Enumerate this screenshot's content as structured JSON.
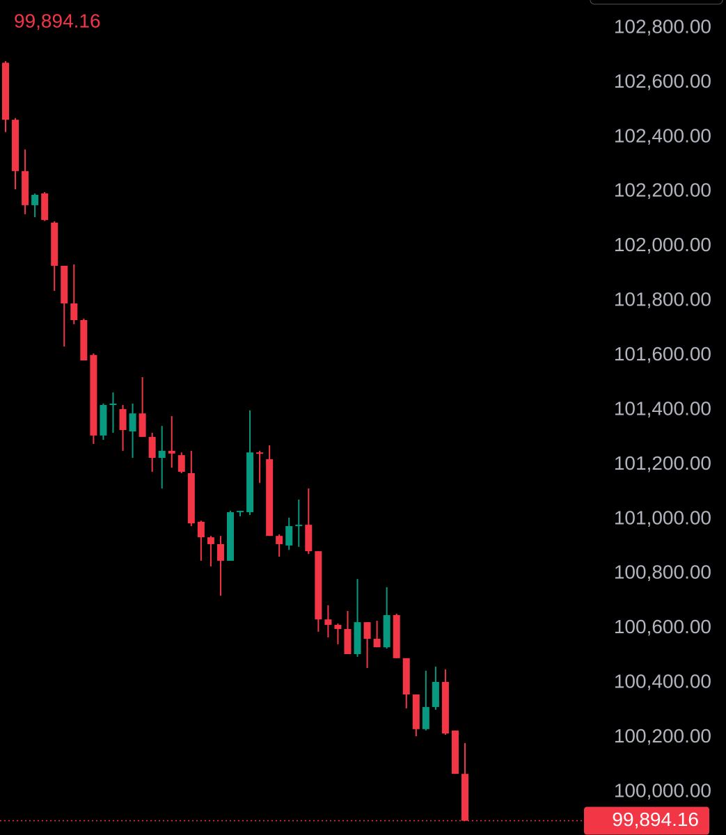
{
  "chart_data": {
    "type": "candlestick",
    "last_price": 99894.16,
    "last_price_label": "99,894.16",
    "ylim": [
      99842,
      102902
    ],
    "yticks": [
      {
        "value": 100000,
        "label": "100,000.00"
      },
      {
        "value": 100200,
        "label": "100,200.00"
      },
      {
        "value": 100400,
        "label": "100,400.00"
      },
      {
        "value": 100600,
        "label": "100,600.00"
      },
      {
        "value": 100800,
        "label": "100,800.00"
      },
      {
        "value": 101000,
        "label": "101,000.00"
      },
      {
        "value": 101200,
        "label": "101,200.00"
      },
      {
        "value": 101400,
        "label": "101,400.00"
      },
      {
        "value": 101600,
        "label": "101,600.00"
      },
      {
        "value": 101800,
        "label": "101,800.00"
      },
      {
        "value": 102000,
        "label": "102,000.00"
      },
      {
        "value": 102200,
        "label": "102,200.00"
      },
      {
        "value": 102400,
        "label": "102,400.00"
      },
      {
        "value": 102600,
        "label": "102,600.00"
      },
      {
        "value": 102800,
        "label": "102,800.00"
      }
    ],
    "up_color": "#089981",
    "down_color": "#f23645",
    "open": [
      102672,
      102463,
      102275,
      102150,
      102193,
      102086,
      101928,
      101790,
      101729,
      101601,
      101306,
      101418,
      101403,
      101321,
      101387,
      101301,
      101224,
      101250,
      101234,
      101168,
      100990,
      100933,
      100908,
      100847,
      101025,
      101025,
      101244,
      101219,
      100938,
      100903,
      100974,
      100979,
      100882,
      100632,
      100612,
      100597,
      100505,
      100622,
      100561,
      100530,
      100648,
      100490,
      100357,
      100230,
      100311,
      100403,
      100225,
      100066
    ],
    "high": [
      102678,
      102469,
      102354,
      102193,
      102198,
      102091,
      101928,
      101933,
      101734,
      101607,
      101423,
      101464,
      101418,
      101423,
      101520,
      101316,
      101341,
      101377,
      101244,
      101250,
      100994,
      100938,
      100938,
      101030,
      101030,
      101398,
      101250,
      101270,
      100944,
      101005,
      101071,
      101112,
      100882,
      100684,
      100617,
      100663,
      100780,
      100622,
      100627,
      100750,
      100653,
      100490,
      100357,
      100444,
      100459,
      100449,
      100225,
      100179
    ],
    "low": [
      102418,
      102208,
      102117,
      102106,
      102092,
      101836,
      101632,
      101714,
      101581,
      101275,
      101290,
      101316,
      101250,
      101224,
      101301,
      101173,
      101112,
      101188,
      101168,
      100974,
      100847,
      100826,
      100719,
      100847,
      101010,
      101015,
      101132,
      100938,
      100862,
      100887,
      100898,
      100872,
      100587,
      100566,
      100541,
      100505,
      100495,
      100454,
      100530,
      100525,
      100490,
      100306,
      100204,
      100225,
      100301,
      100209,
      100066,
      99894
    ],
    "close": [
      102463,
      102275,
      102150,
      102188,
      102096,
      101928,
      101790,
      101729,
      101581,
      101306,
      101418,
      101423,
      101326,
      101387,
      101301,
      101224,
      101250,
      101240,
      101173,
      100984,
      100933,
      100908,
      100847,
      101025,
      101030,
      101244,
      101240,
      100938,
      100908,
      100974,
      100979,
      100882,
      100632,
      100612,
      100597,
      100505,
      100622,
      100561,
      100530,
      100648,
      100490,
      100357,
      100230,
      100311,
      100403,
      100214,
      100066,
      99894.16
    ]
  }
}
